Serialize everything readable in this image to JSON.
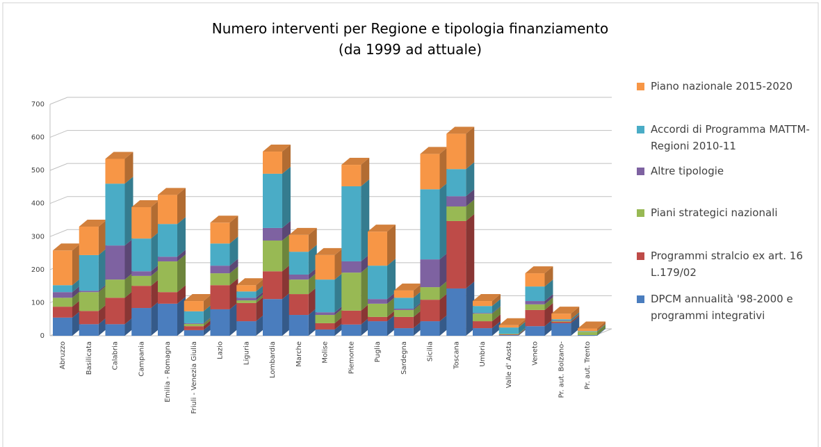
{
  "chart_data": {
    "type": "bar3d_stacked",
    "title": "Numero interventi per Regione e tipologia finanziamento",
    "subtitle": "(da 1999 ad attuale)",
    "categories": [
      "Abruzzo",
      "Basilicata",
      "Calabria",
      "Campania",
      "Emilia - Romagna",
      "Friuli - Venezia Giulia",
      "Lazio",
      "Liguria",
      "Lombardia",
      "Marche",
      "Molise",
      "Piemonte",
      "Puglia",
      "Sardegna",
      "Sicilia",
      "Toscana",
      "Umbria",
      "Valle d' Aosta",
      "Veneto",
      "Pr. aut. Bolzano-",
      "Pr. aut. Trento"
    ],
    "series": [
      {
        "name": "DPCM annualità '98-2000 e programmi integrativi",
        "color": "#4a7dbe",
        "values": [
          55,
          35,
          35,
          84,
          97,
          17,
          80,
          44,
          111,
          63,
          19,
          34,
          44,
          23,
          44,
          143,
          23,
          2,
          29,
          38,
          2
        ]
      },
      {
        "name": "Programmi stralcio ex art. 16 L.179/02",
        "color": "#be4b48",
        "values": [
          33,
          40,
          80,
          67,
          35,
          12,
          73,
          55,
          84,
          63,
          19,
          42,
          13,
          34,
          65,
          204,
          21,
          2,
          49,
          4,
          0
        ]
      },
      {
        "name": "Piani strategici nazionali",
        "color": "#98b954",
        "values": [
          27,
          57,
          55,
          30,
          93,
          7,
          36,
          8,
          93,
          44,
          25,
          115,
          40,
          21,
          38,
          44,
          23,
          2,
          17,
          2,
          10
        ]
      },
      {
        "name": "Altre tipologie",
        "color": "#7e62a1",
        "values": [
          17,
          4,
          103,
          14,
          14,
          2,
          23,
          8,
          38,
          15,
          8,
          34,
          14,
          4,
          84,
          31,
          2,
          0,
          10,
          2,
          0
        ]
      },
      {
        "name": "Accordi di Programma MATTM-Regioni 2010-11",
        "color": "#4aacc6",
        "values": [
          21,
          108,
          187,
          99,
          99,
          36,
          67,
          19,
          164,
          69,
          99,
          227,
          101,
          33,
          212,
          82,
          21,
          19,
          44,
          4,
          2
        ]
      },
      {
        "name": "Piano nazionale 2015-2020",
        "color": "#f79646",
        "values": [
          105,
          86,
          75,
          95,
          88,
          31,
          63,
          19,
          67,
          51,
          74,
          65,
          103,
          22,
          107,
          107,
          15,
          7,
          40,
          17,
          8
        ]
      }
    ],
    "ylim": [
      0,
      700
    ],
    "yticks": [
      0,
      100,
      200,
      300,
      400,
      500,
      600,
      700
    ],
    "grid": true,
    "legend": "right"
  }
}
